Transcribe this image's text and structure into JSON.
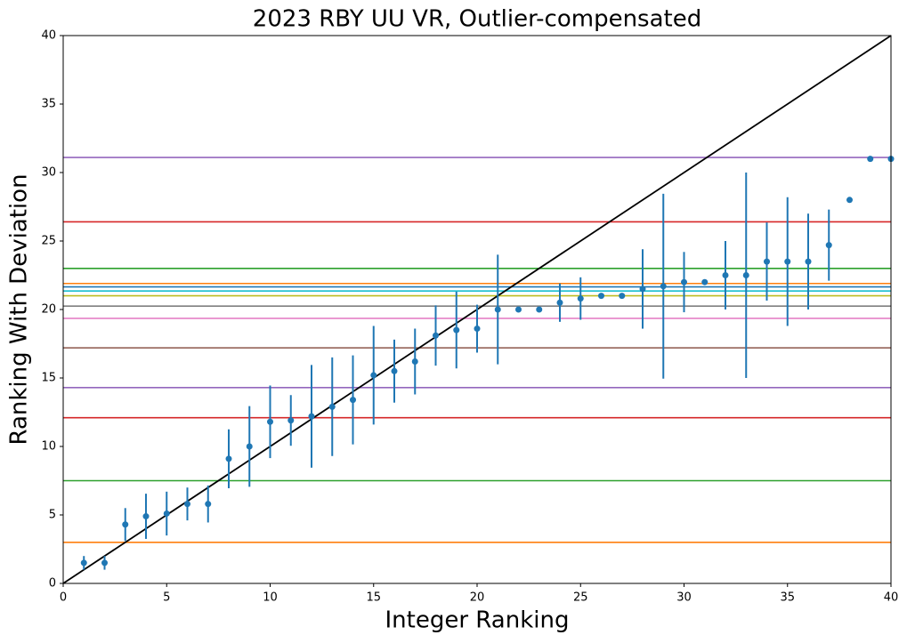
{
  "chart_data": {
    "type": "errorbar",
    "title": "2023 RBY UU VR, Outlier-compensated",
    "xlabel": "Integer Ranking",
    "ylabel": "Ranking With Deviation",
    "xlim": [
      0,
      40
    ],
    "ylim": [
      0,
      40
    ],
    "xticks": [
      0,
      5,
      10,
      15,
      20,
      25,
      30,
      35,
      40
    ],
    "yticks": [
      0,
      5,
      10,
      15,
      20,
      25,
      30,
      35,
      40
    ],
    "series": [
      {
        "color": "#1f77b4",
        "x": [
          1,
          2,
          3,
          4,
          5,
          6,
          7,
          8,
          9,
          10,
          11,
          12,
          13,
          14,
          15,
          16,
          17,
          18,
          19,
          20,
          21,
          22,
          23,
          24,
          25,
          26,
          27,
          28,
          29,
          30,
          31,
          32,
          33,
          34,
          35,
          36,
          37,
          38,
          39,
          40
        ],
        "values": [
          1.5,
          1.5,
          4.3,
          4.9,
          5.1,
          5.8,
          5.8,
          9.1,
          10.0,
          11.8,
          11.9,
          12.2,
          12.9,
          13.4,
          15.2,
          15.5,
          16.2,
          18.1,
          18.5,
          18.6,
          20.0,
          20.0,
          20.0,
          20.5,
          20.8,
          21.0,
          21.0,
          21.5,
          21.7,
          22.0,
          22.0,
          22.5,
          22.5,
          23.5,
          23.5,
          23.5,
          24.7,
          28.0,
          31.0,
          31.0
        ],
        "errors": [
          0.5,
          0.5,
          1.2,
          1.65,
          1.6,
          1.2,
          1.35,
          2.15,
          2.95,
          2.65,
          1.85,
          3.75,
          3.6,
          3.25,
          3.6,
          2.3,
          2.4,
          2.2,
          2.8,
          1.75,
          4.0,
          null,
          null,
          1.4,
          1.55,
          null,
          null,
          2.9,
          6.75,
          2.2,
          null,
          2.5,
          7.5,
          2.85,
          4.7,
          3.5,
          2.6,
          null,
          null,
          null
        ]
      }
    ],
    "reference_lines": {
      "values": [
        3.0,
        7.5,
        12.1,
        14.3,
        17.2,
        19.35,
        20.25,
        21.0,
        21.35,
        21.65,
        21.9,
        23.0,
        26.4,
        31.1
      ],
      "colors": [
        "#ff7f0e",
        "#2ca02c",
        "#d62728",
        "#9467bd",
        "#8c564b",
        "#e377c2",
        "#7f7f7f",
        "#bcbd22",
        "#17becf",
        "#1f77b4",
        "#ff7f0e",
        "#2ca02c",
        "#d62728",
        "#9467bd"
      ]
    },
    "diagonal_line": true,
    "diagonal_color": "#000000"
  }
}
